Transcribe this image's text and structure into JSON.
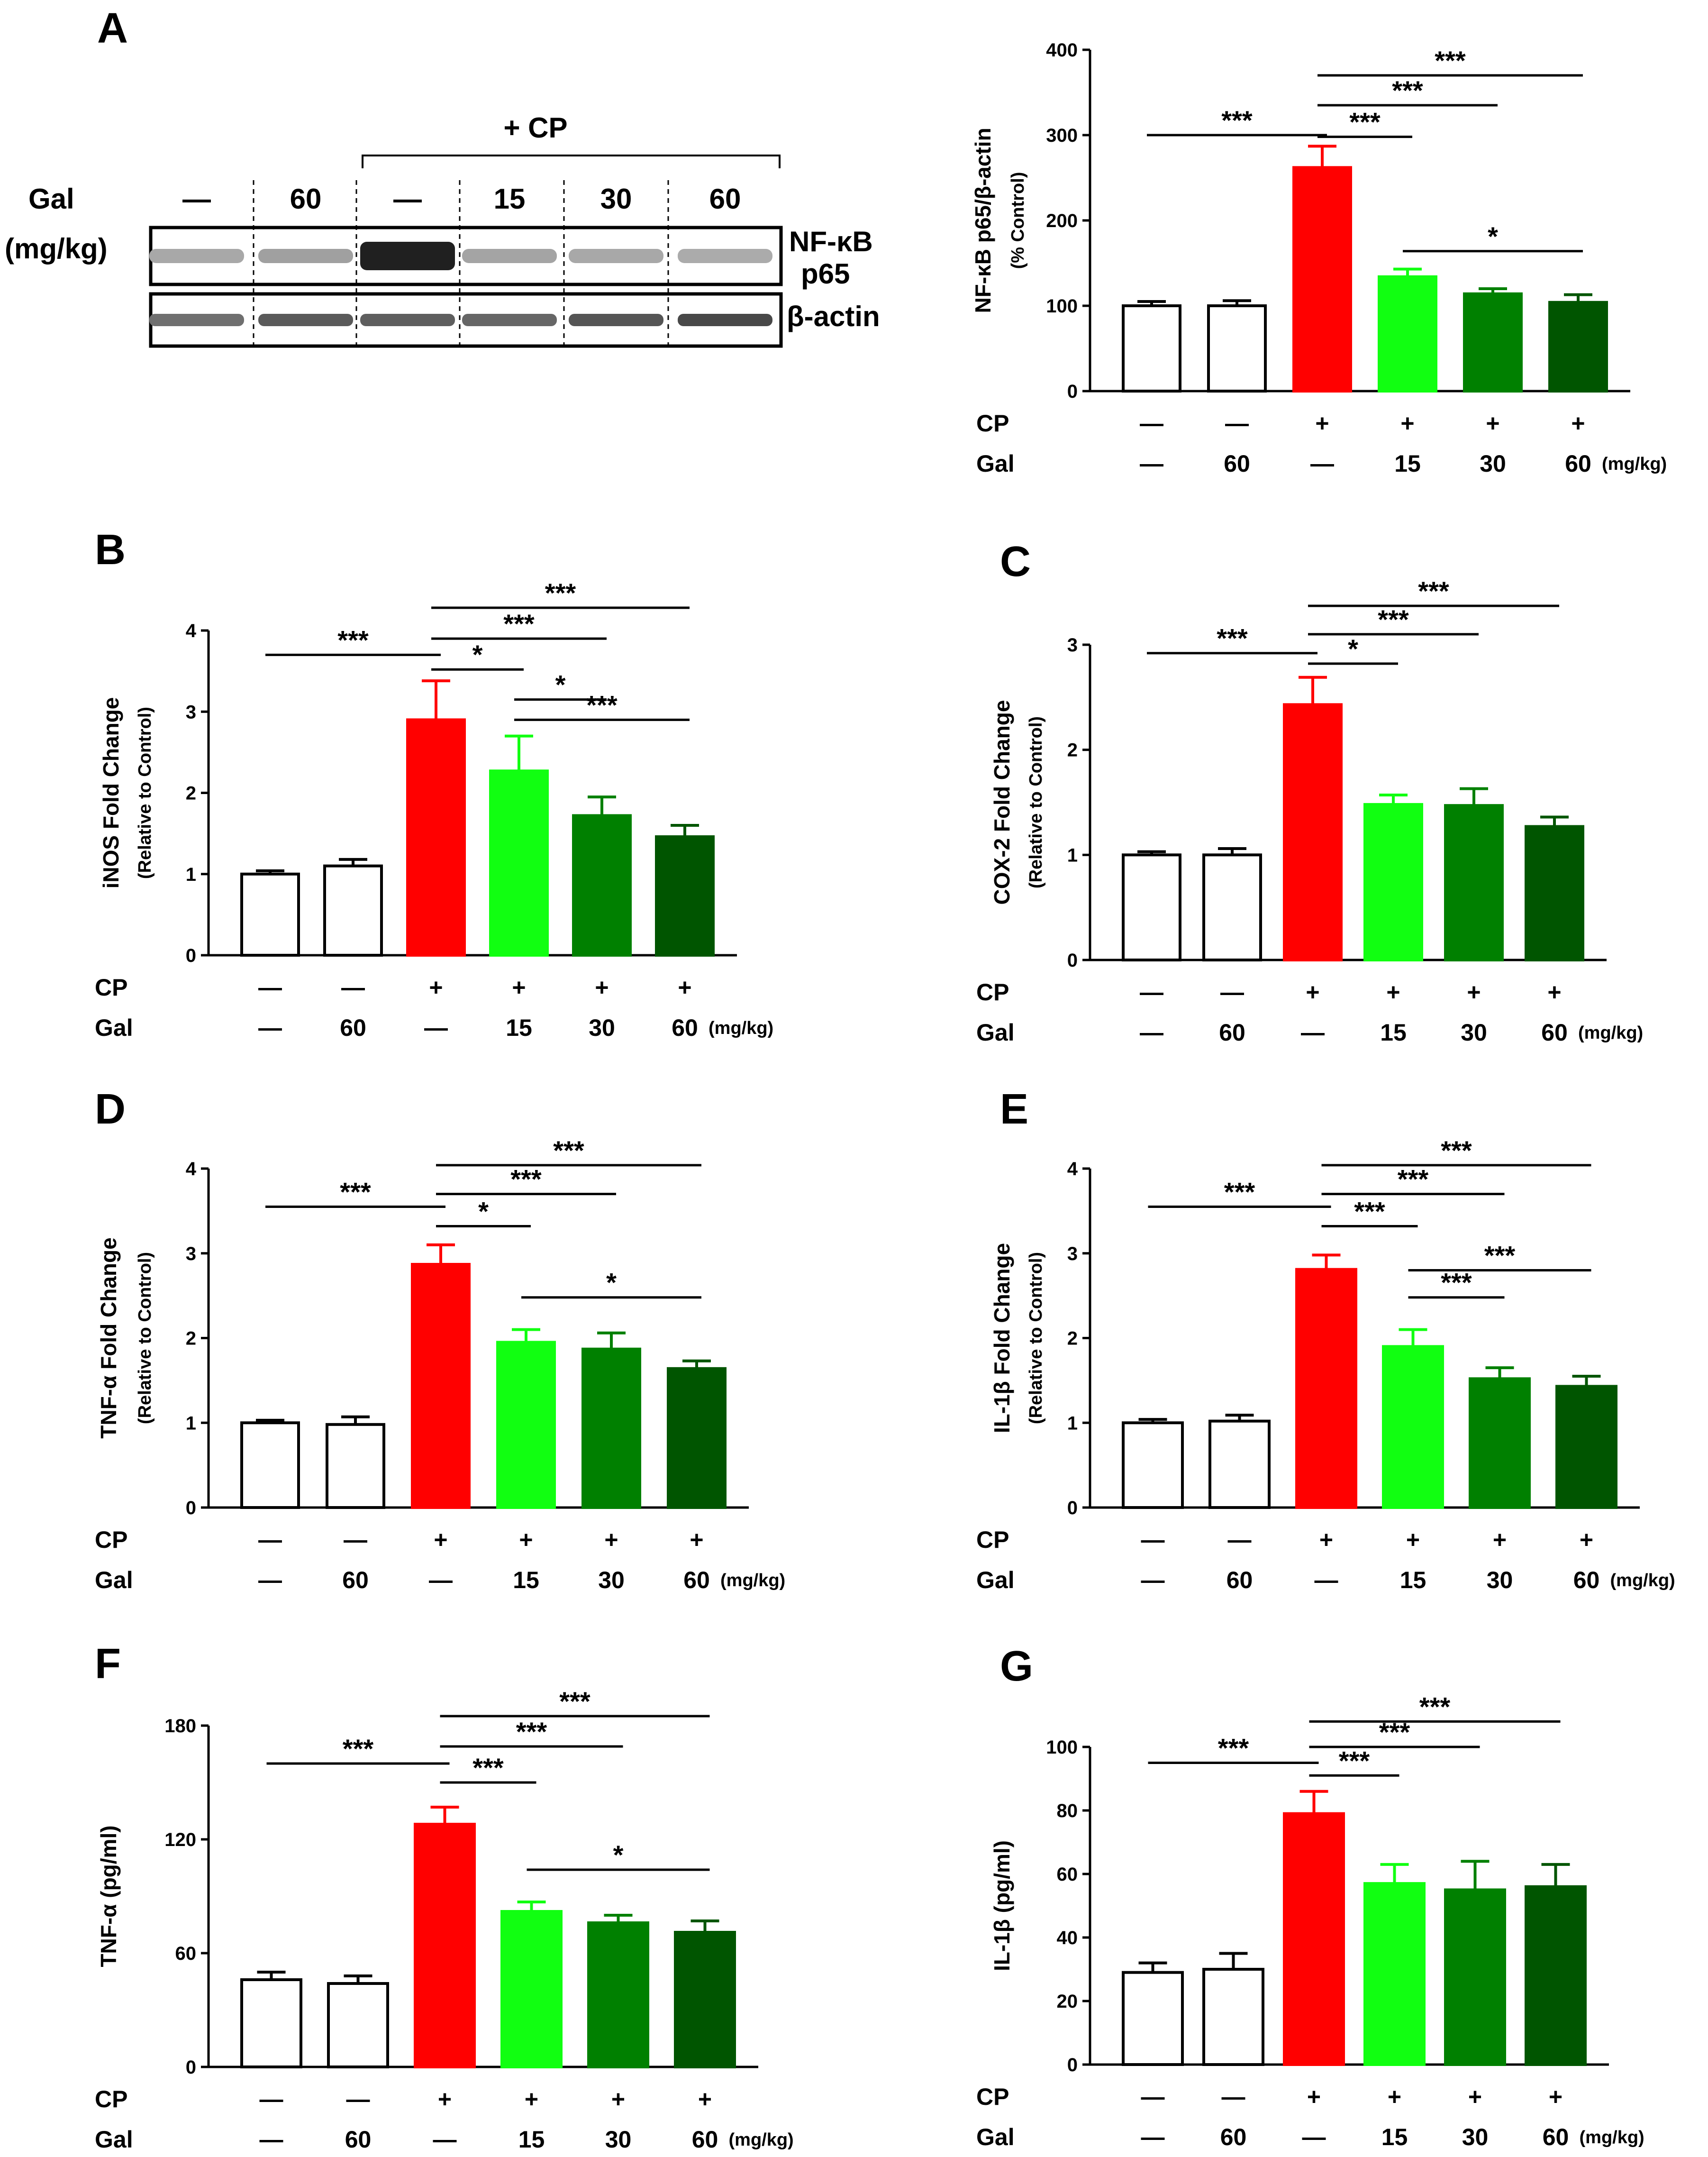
{
  "panel_A_blot": {
    "letter": "A",
    "cp_header": "+ CP",
    "gal_label": "Gal",
    "unit_label": "(mg/kg)",
    "lane_labels": [
      "—",
      "60",
      "—",
      "15",
      "30",
      "60"
    ],
    "band_labels": [
      "NF-κB",
      "p65",
      "β-actin"
    ]
  },
  "treatments": {
    "cp_label": "CP",
    "gal_label": "Gal",
    "cp": [
      "—",
      "—",
      "+",
      "+",
      "+",
      "+"
    ],
    "gal": [
      "—",
      "60",
      "—",
      "15",
      "30",
      "60"
    ],
    "unit": "(mg/kg)"
  },
  "colors": {
    "control": "#ffffff",
    "gal60": "#ffffff",
    "cp": "#ff0000",
    "cp_gal15": "#11ff11",
    "cp_gal30": "#008000",
    "cp_gal60": "#005500"
  },
  "chart_data": [
    {
      "id": "A",
      "type": "bar",
      "letter": "",
      "ylabel": "NF-κB p65/β-actin",
      "ylabel_sub": "(% Control)",
      "ylim": [
        0,
        400
      ],
      "yticks": [
        0,
        100,
        200,
        300,
        400
      ],
      "ytick_labels": [
        "0",
        "100",
        "200",
        "300",
        "400"
      ],
      "values": [
        100,
        100,
        262,
        134,
        114,
        104
      ],
      "errors": [
        5,
        6,
        25,
        9,
        6,
        9
      ],
      "comparisons": [
        {
          "from": 0,
          "to": 2,
          "level": 300,
          "label": "***"
        },
        {
          "from": 2,
          "to": 3,
          "level": 298,
          "label": "***"
        },
        {
          "from": 2,
          "to": 4,
          "level": 335,
          "label": "***"
        },
        {
          "from": 2,
          "to": 5,
          "level": 370,
          "label": "***"
        },
        {
          "from": 3,
          "to": 5,
          "level": 164,
          "label": "*"
        }
      ]
    },
    {
      "id": "B",
      "type": "bar",
      "letter": "B",
      "ylabel": "iNOS Fold Change",
      "ylabel_sub": "(Relative to Control)",
      "ylim": [
        0,
        4
      ],
      "yticks": [
        0,
        1,
        2,
        3,
        4
      ],
      "ytick_labels": [
        "0",
        "1",
        "2",
        "3",
        "4"
      ],
      "values": [
        1.0,
        1.1,
        2.9,
        2.27,
        1.72,
        1.46
      ],
      "errors": [
        0.04,
        0.08,
        0.48,
        0.43,
        0.23,
        0.14
      ],
      "comparisons": [
        {
          "from": 0,
          "to": 2,
          "level": 3.7,
          "label": "***"
        },
        {
          "from": 2,
          "to": 3,
          "level": 3.52,
          "label": "*"
        },
        {
          "from": 2,
          "to": 4,
          "level": 3.9,
          "label": "***"
        },
        {
          "from": 2,
          "to": 5,
          "level": 4.28,
          "label": "***"
        },
        {
          "from": 3,
          "to": 4,
          "level": 3.15,
          "label": "*"
        },
        {
          "from": 3,
          "to": 5,
          "level": 2.9,
          "label": "***"
        }
      ]
    },
    {
      "id": "C",
      "type": "bar",
      "letter": "C",
      "ylabel": "COX-2 Fold Change",
      "ylabel_sub": "(Relative to Control)",
      "ylim": [
        0,
        3
      ],
      "yticks": [
        0,
        1,
        2,
        3
      ],
      "ytick_labels": [
        "0",
        "1",
        "2",
        "3"
      ],
      "values": [
        1.0,
        1.0,
        2.43,
        1.48,
        1.47,
        1.27
      ],
      "errors": [
        0.03,
        0.06,
        0.26,
        0.09,
        0.16,
        0.09
      ],
      "comparisons": [
        {
          "from": 0,
          "to": 2,
          "level": 2.92,
          "label": "***"
        },
        {
          "from": 2,
          "to": 3,
          "level": 2.82,
          "label": "*"
        },
        {
          "from": 2,
          "to": 4,
          "level": 3.1,
          "label": "***"
        },
        {
          "from": 2,
          "to": 5,
          "level": 3.37,
          "label": "***"
        }
      ]
    },
    {
      "id": "D",
      "type": "bar",
      "letter": "D",
      "ylabel": "TNF-α Fold Change",
      "ylabel_sub": "(Relative to Control)",
      "ylim": [
        0,
        4
      ],
      "yticks": [
        0,
        1,
        2,
        3,
        4
      ],
      "ytick_labels": [
        "0",
        "1",
        "2",
        "3",
        "4"
      ],
      "values": [
        1.0,
        0.98,
        2.87,
        1.95,
        1.87,
        1.64
      ],
      "errors": [
        0.03,
        0.09,
        0.23,
        0.15,
        0.19,
        0.09
      ],
      "comparisons": [
        {
          "from": 0,
          "to": 2,
          "level": 3.55,
          "label": "***"
        },
        {
          "from": 2,
          "to": 3,
          "level": 3.32,
          "label": "*"
        },
        {
          "from": 2,
          "to": 4,
          "level": 3.7,
          "label": "***"
        },
        {
          "from": 2,
          "to": 5,
          "level": 4.04,
          "label": "***"
        },
        {
          "from": 3,
          "to": 5,
          "level": 2.48,
          "label": "*"
        }
      ]
    },
    {
      "id": "E",
      "type": "bar",
      "letter": "E",
      "ylabel": "IL-1β Fold Change",
      "ylabel_sub": "(Relative to Control)",
      "ylim": [
        0,
        4
      ],
      "yticks": [
        0,
        1,
        2,
        3,
        4
      ],
      "ytick_labels": [
        "0",
        "1",
        "2",
        "3",
        "4"
      ],
      "values": [
        1.0,
        1.02,
        2.81,
        1.9,
        1.52,
        1.43
      ],
      "errors": [
        0.04,
        0.07,
        0.17,
        0.2,
        0.13,
        0.12
      ],
      "comparisons": [
        {
          "from": 0,
          "to": 2,
          "level": 3.55,
          "label": "***"
        },
        {
          "from": 2,
          "to": 3,
          "level": 3.32,
          "label": "***"
        },
        {
          "from": 2,
          "to": 4,
          "level": 3.7,
          "label": "***"
        },
        {
          "from": 2,
          "to": 5,
          "level": 4.04,
          "label": "***"
        },
        {
          "from": 3,
          "to": 4,
          "level": 2.48,
          "label": "***"
        },
        {
          "from": 3,
          "to": 5,
          "level": 2.8,
          "label": "***"
        }
      ]
    },
    {
      "id": "F",
      "type": "bar",
      "letter": "F",
      "ylabel": "TNF-α (pg/ml)",
      "ylabel_sub": "",
      "ylim": [
        0,
        180
      ],
      "yticks": [
        0,
        60,
        120,
        180
      ],
      "ytick_labels": [
        "0",
        "60",
        "120",
        "180"
      ],
      "values": [
        46,
        44,
        128,
        82,
        76,
        71
      ],
      "errors": [
        4,
        4,
        9,
        5,
        4,
        6
      ],
      "comparisons": [
        {
          "from": 0,
          "to": 2,
          "level": 160,
          "label": "***"
        },
        {
          "from": 2,
          "to": 3,
          "level": 150,
          "label": "***"
        },
        {
          "from": 2,
          "to": 4,
          "level": 169,
          "label": "***"
        },
        {
          "from": 2,
          "to": 5,
          "level": 185,
          "label": "***"
        },
        {
          "from": 3,
          "to": 5,
          "level": 104,
          "label": "*"
        }
      ]
    },
    {
      "id": "G",
      "type": "bar",
      "letter": "G",
      "ylabel": "IL-1β (pg/ml)",
      "ylabel_sub": "",
      "ylim": [
        0,
        100
      ],
      "yticks": [
        0,
        20,
        40,
        60,
        80,
        100
      ],
      "ytick_labels": [
        "0",
        "20",
        "40",
        "60",
        "80",
        "100"
      ],
      "values": [
        29,
        30,
        79,
        57,
        55,
        56
      ],
      "errors": [
        3,
        5,
        7,
        6,
        9,
        7
      ],
      "comparisons": [
        {
          "from": 0,
          "to": 2,
          "level": 95,
          "label": "***"
        },
        {
          "from": 2,
          "to": 3,
          "level": 91,
          "label": "***"
        },
        {
          "from": 2,
          "to": 4,
          "level": 100,
          "label": "***"
        },
        {
          "from": 2,
          "to": 5,
          "level": 108,
          "label": "***"
        }
      ]
    }
  ]
}
